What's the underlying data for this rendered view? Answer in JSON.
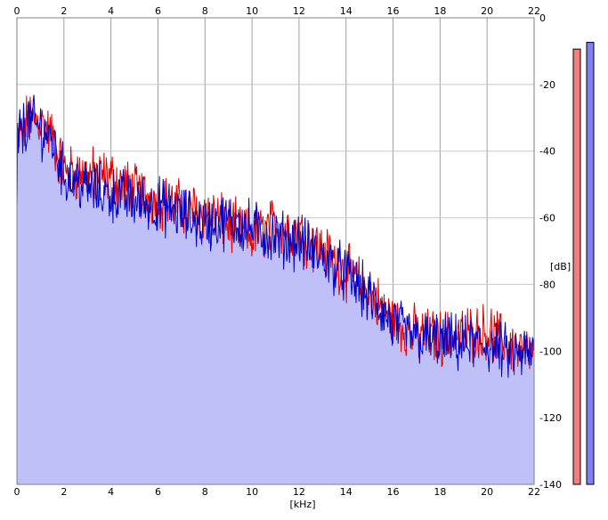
{
  "chart_data": {
    "type": "line",
    "title": "",
    "xlabel": "[kHz]",
    "ylabel": "[dB]",
    "xlim": [
      0,
      22
    ],
    "ylim": [
      -140,
      0
    ],
    "x_ticks": [
      0,
      2,
      4,
      6,
      8,
      10,
      12,
      14,
      16,
      18,
      20,
      22
    ],
    "y_ticks": [
      0,
      -20,
      -40,
      -60,
      -80,
      -100,
      -120,
      -140
    ],
    "grid": true,
    "series": [
      {
        "color": "#e00000",
        "x": [
          0,
          0.5,
          1,
          1.5,
          2,
          3,
          4,
          5,
          6,
          7,
          8,
          9,
          10,
          11,
          12,
          13,
          14,
          15,
          16,
          17,
          18,
          19,
          20,
          21,
          22
        ],
        "y": [
          -38,
          -30,
          -31,
          -36,
          -46,
          -47,
          -48,
          -52,
          -55,
          -57,
          -58,
          -62,
          -66,
          -62,
          -64,
          -70,
          -76,
          -83,
          -91,
          -95,
          -96,
          -95,
          -94,
          -99,
          -102
        ]
      },
      {
        "color": "#0000c8",
        "x": [
          0,
          0.5,
          1,
          1.5,
          2,
          3,
          4,
          5,
          6,
          7,
          8,
          9,
          10,
          11,
          12,
          13,
          14,
          15,
          16,
          17,
          18,
          19,
          20,
          21,
          22
        ],
        "y": [
          -36,
          -31,
          -33,
          -37,
          -47,
          -51,
          -53,
          -55,
          -56,
          -59,
          -62,
          -61,
          -63,
          -66,
          -67,
          -72,
          -77,
          -84,
          -92,
          -96,
          -97,
          -98,
          -98,
          -101,
          -101
        ]
      }
    ],
    "fill_color": "#c0c0f8",
    "meters": [
      {
        "color": "#f08080",
        "level": 0.97
      },
      {
        "color": "#8080f0",
        "level": 0.985
      }
    ]
  }
}
